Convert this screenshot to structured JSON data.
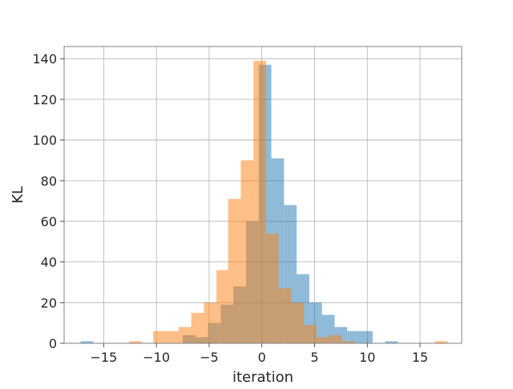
{
  "chart_data": {
    "type": "bar",
    "title": "",
    "xlabel": "iteration",
    "ylabel": "KL",
    "xlim": [
      -18.75,
      18.95
    ],
    "ylim": [
      0,
      146
    ],
    "xticks": [
      -15,
      -10,
      -5,
      0,
      5,
      10,
      15
    ],
    "xtick_labels": [
      "−15",
      "−10",
      "−5",
      "0",
      "5",
      "10",
      "15"
    ],
    "yticks": [
      0,
      20,
      40,
      60,
      80,
      100,
      120,
      140
    ],
    "ytick_labels": [
      "0",
      "20",
      "40",
      "60",
      "80",
      "100",
      "120",
      "140"
    ],
    "grid": true,
    "legend": "none",
    "series": [
      {
        "color": "#1f77b4",
        "opacity": 0.5,
        "bins": [
          {
            "x0": -17.2,
            "x1": -16.0,
            "count": 1
          },
          {
            "x0": -7.5,
            "x1": -6.3,
            "count": 4
          },
          {
            "x0": -6.3,
            "x1": -5.1,
            "count": 3
          },
          {
            "x0": -5.1,
            "x1": -3.9,
            "count": 10
          },
          {
            "x0": -3.9,
            "x1": -2.7,
            "count": 19
          },
          {
            "x0": -2.7,
            "x1": -1.5,
            "count": 28
          },
          {
            "x0": -1.5,
            "x1": -0.3,
            "count": 60
          },
          {
            "x0": -0.3,
            "x1": 0.9,
            "count": 137
          },
          {
            "x0": 0.9,
            "x1": 2.1,
            "count": 91
          },
          {
            "x0": 2.1,
            "x1": 3.3,
            "count": 68
          },
          {
            "x0": 3.3,
            "x1": 4.5,
            "count": 34
          },
          {
            "x0": 4.5,
            "x1": 5.7,
            "count": 20
          },
          {
            "x0": 5.7,
            "x1": 6.9,
            "count": 14
          },
          {
            "x0": 6.9,
            "x1": 8.1,
            "count": 8
          },
          {
            "x0": 8.1,
            "x1": 9.3,
            "count": 6
          },
          {
            "x0": 9.3,
            "x1": 10.5,
            "count": 6
          },
          {
            "x0": 11.7,
            "x1": 12.9,
            "count": 1
          }
        ]
      },
      {
        "color": "#ff7f0e",
        "opacity": 0.5,
        "bins": [
          {
            "x0": -12.6,
            "x1": -11.4,
            "count": 1
          },
          {
            "x0": -10.3,
            "x1": -9.1,
            "count": 6
          },
          {
            "x0": -9.1,
            "x1": -7.9,
            "count": 6
          },
          {
            "x0": -7.9,
            "x1": -6.7,
            "count": 8
          },
          {
            "x0": -6.7,
            "x1": -5.5,
            "count": 15
          },
          {
            "x0": -5.5,
            "x1": -4.3,
            "count": 20
          },
          {
            "x0": -4.3,
            "x1": -3.2,
            "count": 36
          },
          {
            "x0": -3.2,
            "x1": -2.0,
            "count": 71
          },
          {
            "x0": -2.0,
            "x1": -0.8,
            "count": 90
          },
          {
            "x0": -0.8,
            "x1": 0.4,
            "count": 139
          },
          {
            "x0": 0.4,
            "x1": 1.6,
            "count": 54
          },
          {
            "x0": 1.6,
            "x1": 2.8,
            "count": 27
          },
          {
            "x0": 2.8,
            "x1": 4.0,
            "count": 20
          },
          {
            "x0": 4.0,
            "x1": 5.2,
            "count": 9
          },
          {
            "x0": 5.2,
            "x1": 6.4,
            "count": 3
          },
          {
            "x0": 6.4,
            "x1": 7.6,
            "count": 4
          },
          {
            "x0": 7.6,
            "x1": 8.8,
            "count": 1
          },
          {
            "x0": 16.4,
            "x1": 17.6,
            "count": 1
          }
        ]
      }
    ]
  }
}
